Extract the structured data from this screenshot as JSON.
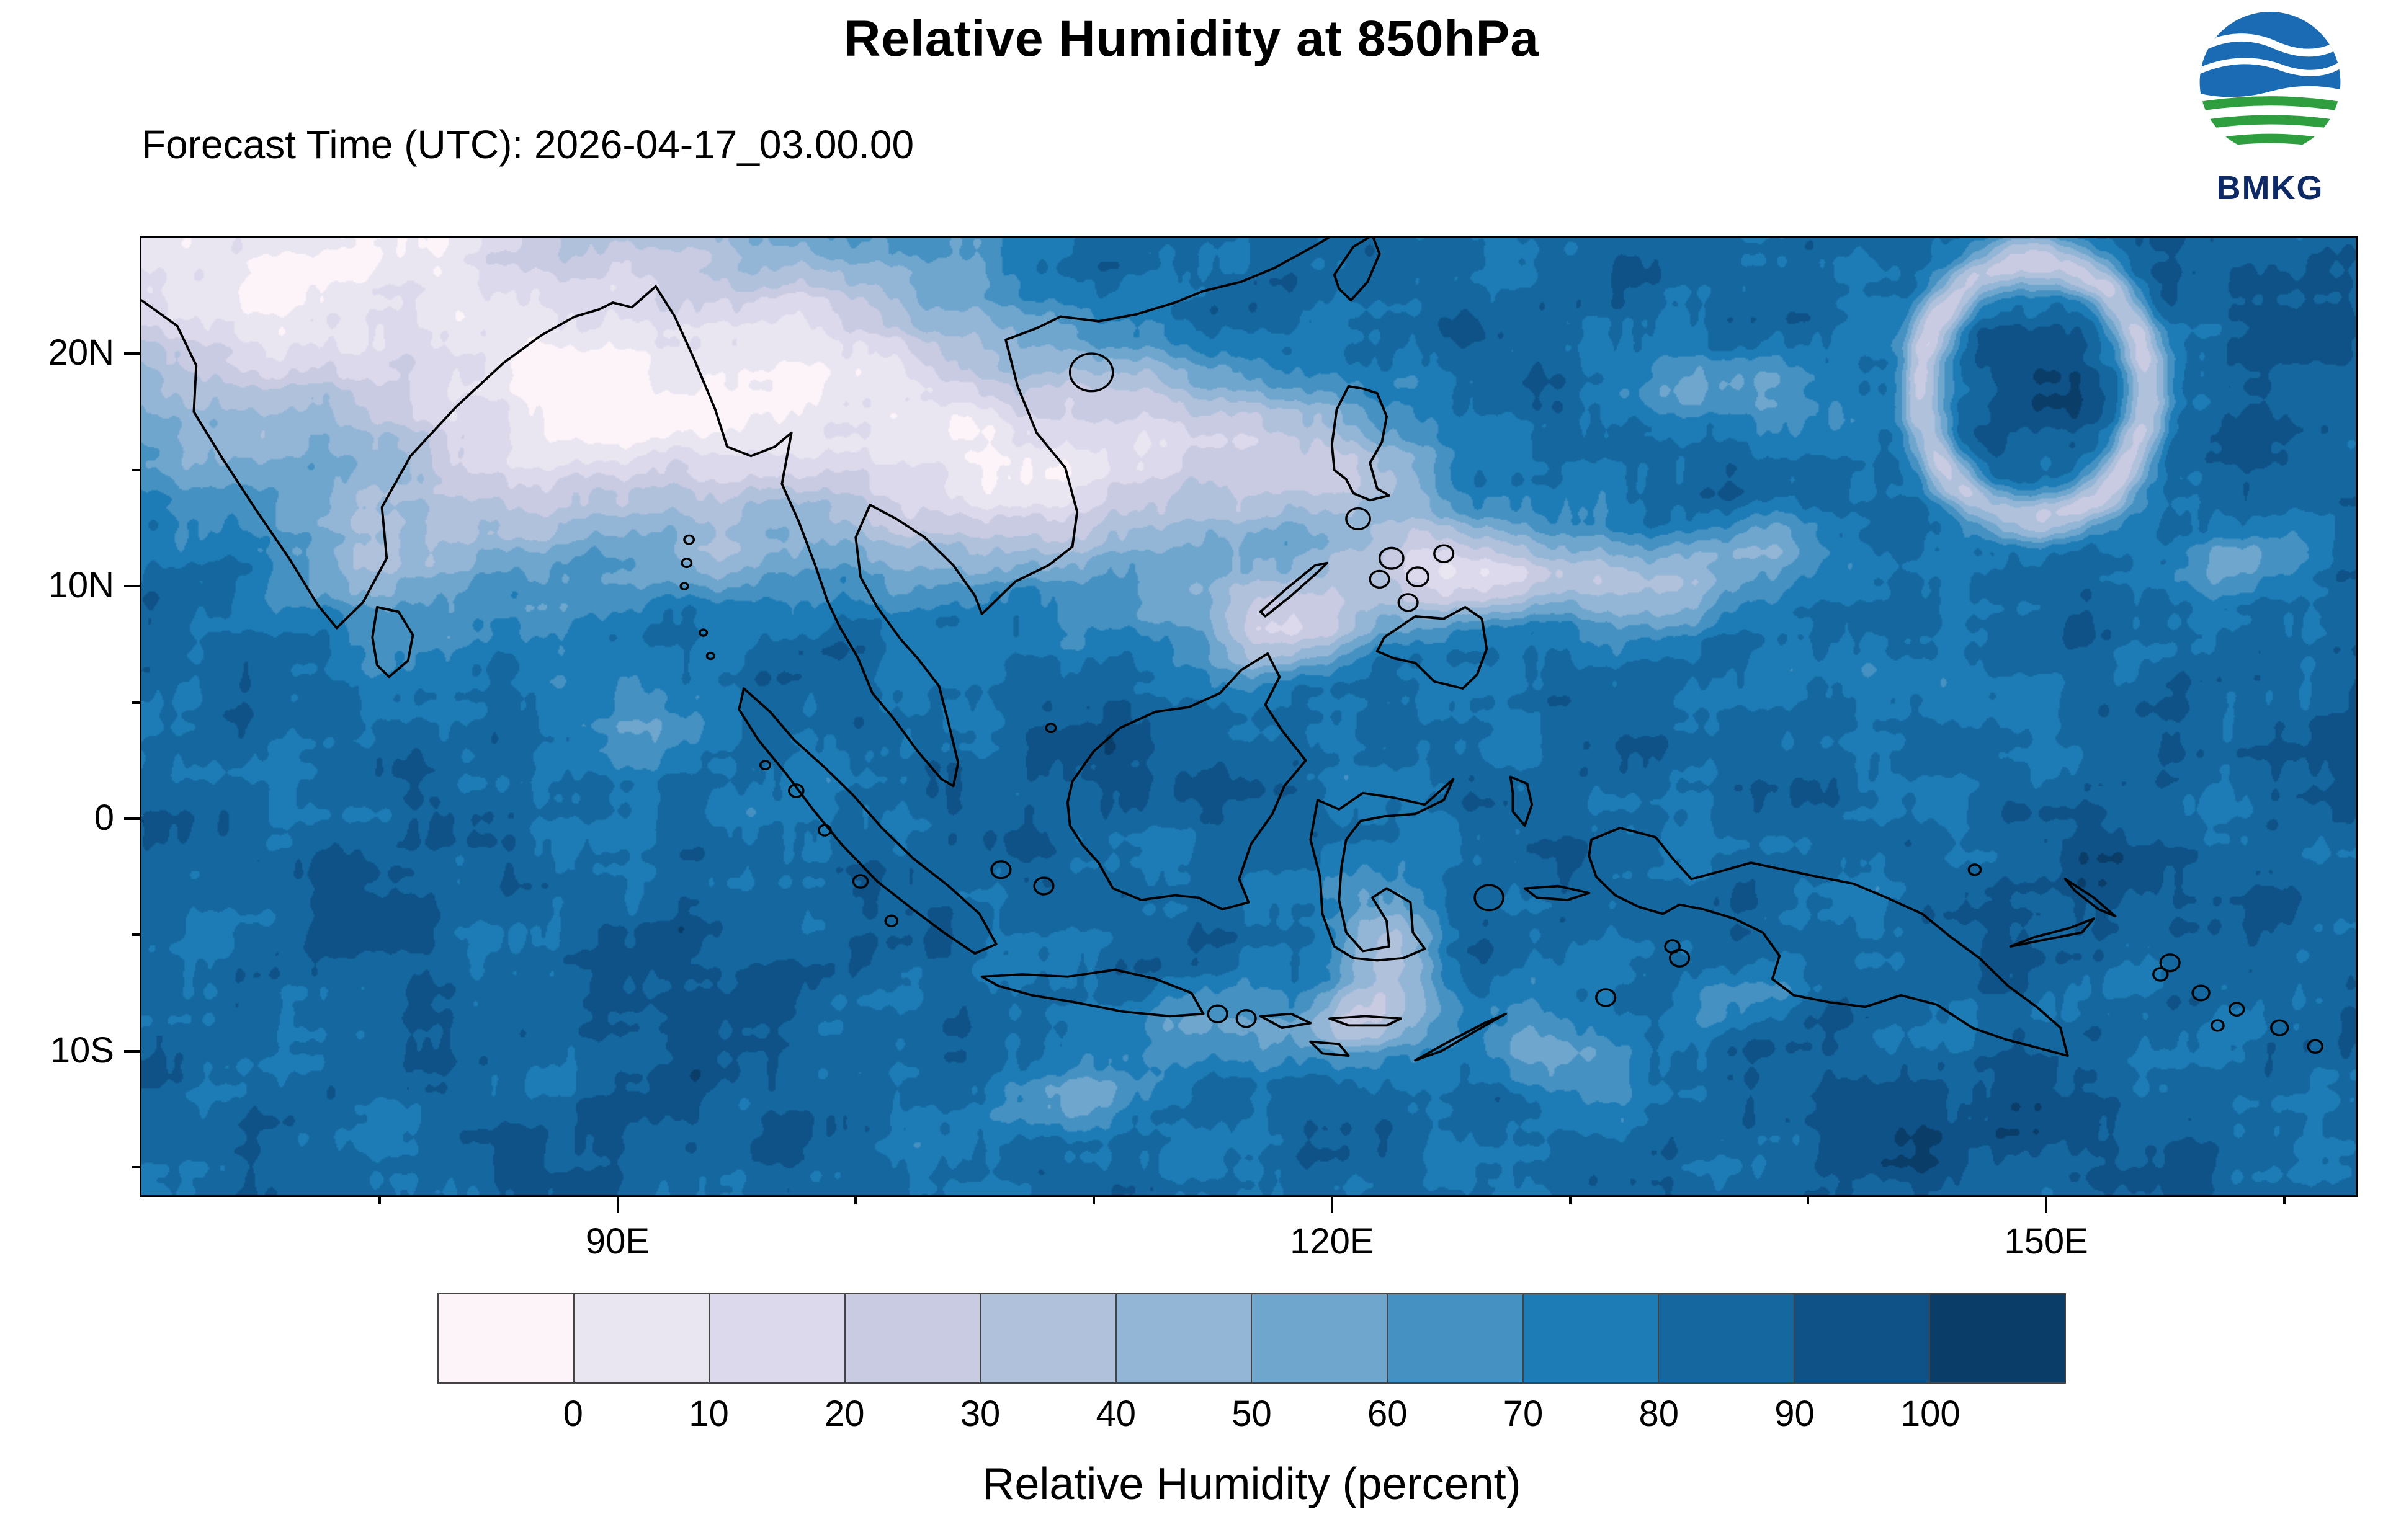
{
  "header": {
    "title": "Relative Humidity at 850hPa",
    "forecast_time": "Forecast Time (UTC): 2026-04-17_03.00.00",
    "logo_text": "BMKG"
  },
  "map_axes": {
    "lat_ticks": [
      {
        "label": "20N",
        "value": 20
      },
      {
        "label": "10N",
        "value": 10
      },
      {
        "label": "0",
        "value": 0
      },
      {
        "label": "10S",
        "value": -10
      }
    ],
    "lon_ticks": [
      {
        "label": "90E",
        "value": 90
      },
      {
        "label": "120E",
        "value": 120
      },
      {
        "label": "150E",
        "value": 150
      }
    ]
  },
  "colorbar": {
    "label": "Relative Humidity (percent)",
    "tick_labels": [
      "0",
      "10",
      "20",
      "30",
      "40",
      "50",
      "60",
      "70",
      "80",
      "90",
      "100"
    ],
    "colors": [
      "#fdf4f9",
      "#e9e6f1",
      "#dcd9ec",
      "#c9cbe3",
      "#b0c1dc",
      "#93b5d6",
      "#6ea6cd",
      "#4491c2",
      "#1d7cb6",
      "#15679f",
      "#0e5287",
      "#0a3d68"
    ]
  },
  "logo_colors": {
    "blue": "#1a6ab4",
    "green": "#2f9e3f",
    "text": "#0d2a66"
  }
}
